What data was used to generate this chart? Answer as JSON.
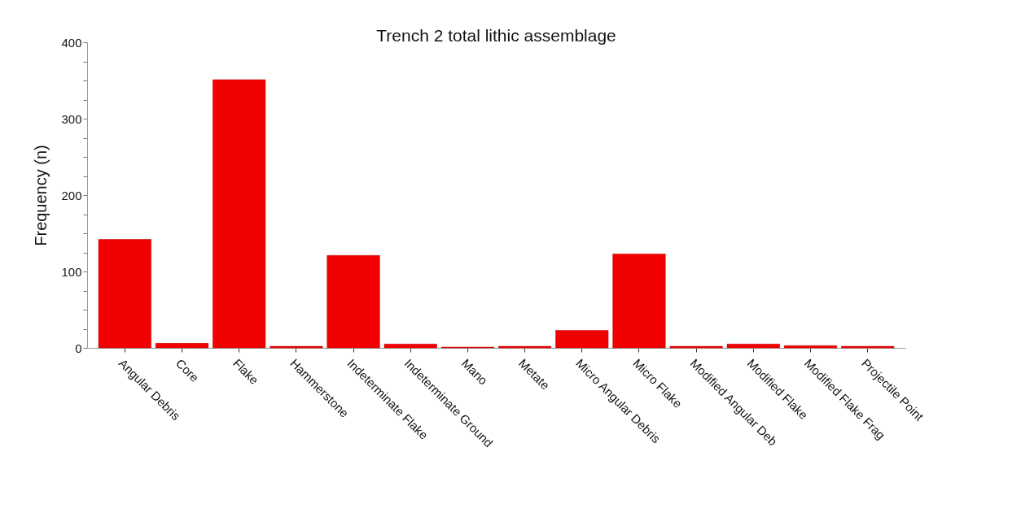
{
  "chart_data": {
    "type": "bar",
    "title": "Trench 2 total lithic assemblage",
    "ylabel": "Frequency (n)",
    "categories": [
      "Angular Debris",
      "Core",
      "Flake",
      "Hammerstone",
      "Indeterminate Flake",
      "Indeterminate Ground",
      "Mano",
      "Metate",
      "Micro Angular Debris",
      "Micro Flake",
      "Modified Angular Deb",
      "Modified Flake",
      "Modified Flake Frag",
      "Projectile Point"
    ],
    "values": [
      142,
      6,
      351,
      2,
      121,
      5,
      1,
      2,
      23,
      123,
      2,
      5,
      3,
      2
    ],
    "color": "#f00000",
    "ylim": [
      0,
      400
    ],
    "yticks": [
      0,
      {
        "value": 25,
        "label": null
      },
      {
        "value": 50,
        "label": null
      },
      {
        "value": 75,
        "label": null
      },
      100,
      {
        "value": 125,
        "label": null
      },
      {
        "value": 150,
        "label": null
      },
      {
        "value": 175,
        "label": null
      },
      200,
      {
        "value": 225,
        "label": null
      },
      {
        "value": 250,
        "label": null
      },
      {
        "value": 275,
        "label": null
      },
      300,
      {
        "value": 325,
        "label": null
      },
      {
        "value": 350,
        "label": null
      },
      {
        "value": 375,
        "label": null
      },
      400
    ],
    "grid": false
  }
}
